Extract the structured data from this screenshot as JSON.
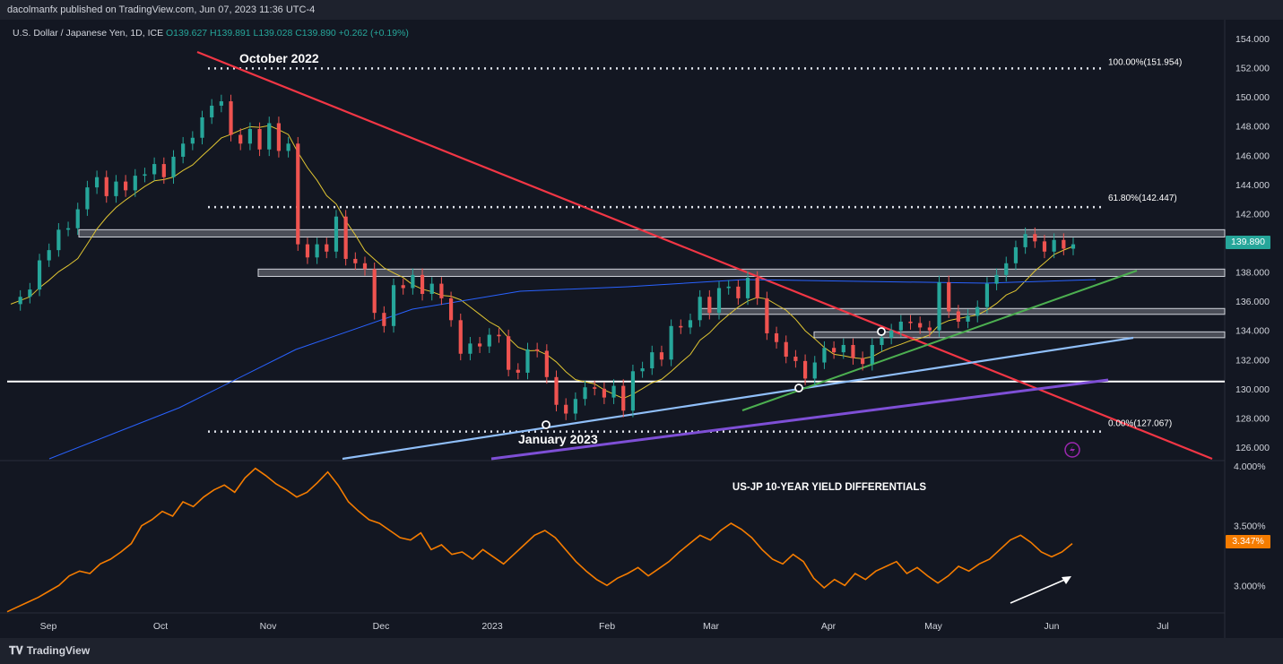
{
  "header": {
    "publisher": "dacolmanfx published on TradingView.com, Jun 07, 2023 11:36 UTC-4"
  },
  "legend": {
    "symbol": "U.S. Dollar / Japanese Yen, 1D, ICE",
    "ohlc": "O139.627 H139.891 L139.028 C139.890 +0.262 (+0.19%)"
  },
  "footer": {
    "brand": "TradingView"
  },
  "colors": {
    "background": "#131722",
    "up_candle": "#26a69a",
    "down_candle": "#ef5350",
    "sma_short": "#e0c532",
    "sma_long": "#2962ff",
    "downtrend": "#f23645",
    "uptrend_green": "#4caf50",
    "support_blue": "#90bff9",
    "support_purple": "#7e4fd6",
    "yield_line": "#f57c00"
  },
  "chart_data": [
    {
      "type": "candlestick",
      "title": "U.S. Dollar / Japanese Yen, 1D, ICE",
      "last_price": "139.890",
      "y_ticks": [
        "154.000",
        "152.000",
        "150.000",
        "148.000",
        "146.000",
        "144.000",
        "142.000",
        "140.000",
        "138.000",
        "136.000",
        "134.000",
        "132.000",
        "130.000",
        "128.000",
        "126.000"
      ],
      "ylim": [
        125.2,
        154.8
      ],
      "x_ticks": [
        "Sep",
        "Oct",
        "Nov",
        "Dec",
        "2023",
        "Feb",
        "Mar",
        "Apr",
        "May",
        "Jun",
        "Jul"
      ],
      "annotations": {
        "top_label": "October 2022",
        "bottom_label": "January 2023",
        "fib_100": "100.00%(151.954)",
        "fib_618": "61.80%(142.447)",
        "fib_0": "0.00%(127.067)"
      },
      "levels": {
        "fib_100": 151.954,
        "fib_618": 142.447,
        "fib_0": 127.067,
        "support_white": 130.5
      },
      "zones": [
        {
          "from": 140.4,
          "to": 140.9
        },
        {
          "from": 137.7,
          "to": 138.2
        },
        {
          "from": 135.1,
          "to": 135.5
        },
        {
          "from": 133.5,
          "to": 133.9
        }
      ],
      "series": [
        {
          "name": "USD/JPY",
          "points": [
            [
              0,
              135.8
            ],
            [
              0.02,
              136.3
            ],
            [
              0.04,
              136.8
            ],
            [
              0.06,
              138.8
            ],
            [
              0.08,
              139.5
            ],
            [
              0.1,
              140.9
            ],
            [
              0.12,
              141.0
            ],
            [
              0.14,
              142.3
            ],
            [
              0.16,
              143.8
            ],
            [
              0.18,
              144.5
            ],
            [
              0.2,
              143.2
            ],
            [
              0.22,
              144.2
            ],
            [
              0.24,
              143.6
            ],
            [
              0.26,
              144.6
            ],
            [
              0.28,
              144.7
            ],
            [
              0.3,
              145.4
            ],
            [
              0.32,
              144.5
            ],
            [
              0.34,
              145.9
            ],
            [
              0.36,
              146.8
            ],
            [
              0.38,
              147.2
            ],
            [
              0.4,
              148.6
            ],
            [
              0.42,
              149.4
            ],
            [
              0.44,
              149.7
            ],
            [
              0.46,
              147.4
            ],
            [
              0.48,
              146.8
            ],
            [
              0.5,
              147.8
            ],
            [
              0.52,
              146.4
            ],
            [
              0.54,
              148.2
            ],
            [
              0.56,
              146.3
            ],
            [
              0.58,
              146.8
            ],
            [
              0.6,
              139.9
            ],
            [
              0.62,
              139.0
            ],
            [
              0.64,
              139.9
            ],
            [
              0.66,
              139.4
            ],
            [
              0.68,
              141.8
            ],
            [
              0.7,
              138.9
            ],
            [
              0.72,
              138.6
            ],
            [
              0.74,
              138.2
            ],
            [
              0.76,
              135.2
            ],
            [
              0.78,
              134.3
            ],
            [
              0.8,
              137.1
            ],
            [
              0.82,
              136.9
            ],
            [
              0.84,
              137.8
            ],
            [
              0.86,
              136.5
            ],
            [
              0.88,
              137.2
            ],
            [
              0.9,
              136.2
            ],
            [
              0.92,
              134.7
            ],
            [
              0.94,
              132.4
            ],
            [
              0.96,
              133.1
            ],
            [
              0.98,
              132.9
            ],
            [
              1.0,
              133.7
            ],
            [
              1.02,
              133.6
            ],
            [
              1.04,
              131.3
            ],
            [
              1.06,
              131.1
            ],
            [
              1.08,
              132.7
            ],
            [
              1.1,
              132.6
            ],
            [
              1.12,
              130.8
            ],
            [
              1.14,
              128.9
            ],
            [
              1.16,
              128.3
            ],
            [
              1.18,
              129.3
            ],
            [
              1.2,
              130.1
            ],
            [
              1.22,
              130.0
            ],
            [
              1.24,
              129.4
            ],
            [
              1.26,
              130.2
            ],
            [
              1.28,
              128.5
            ],
            [
              1.3,
              131.2
            ],
            [
              1.32,
              131.4
            ],
            [
              1.34,
              132.5
            ],
            [
              1.36,
              132.0
            ],
            [
              1.38,
              134.3
            ],
            [
              1.4,
              134.2
            ],
            [
              1.42,
              134.7
            ],
            [
              1.44,
              136.3
            ],
            [
              1.46,
              135.2
            ],
            [
              1.48,
              136.9
            ],
            [
              1.5,
              137.0
            ],
            [
              1.52,
              136.2
            ],
            [
              1.54,
              137.6
            ],
            [
              1.56,
              136.2
            ],
            [
              1.58,
              133.8
            ],
            [
              1.6,
              133.2
            ],
            [
              1.62,
              132.2
            ],
            [
              1.64,
              131.9
            ],
            [
              1.66,
              130.7
            ],
            [
              1.68,
              131.8
            ],
            [
              1.7,
              132.8
            ],
            [
              1.72,
              132.5
            ],
            [
              1.74,
              133.0
            ],
            [
              1.76,
              132.1
            ],
            [
              1.78,
              131.7
            ],
            [
              1.8,
              133.0
            ],
            [
              1.82,
              133.5
            ],
            [
              1.84,
              134.0
            ],
            [
              1.86,
              134.6
            ],
            [
              1.88,
              134.5
            ],
            [
              1.9,
              134.2
            ],
            [
              1.92,
              134.0
            ],
            [
              1.94,
              137.3
            ],
            [
              1.96,
              135.3
            ],
            [
              1.98,
              134.6
            ],
            [
              2.0,
              135.0
            ],
            [
              2.02,
              135.6
            ],
            [
              2.04,
              137.2
            ],
            [
              2.06,
              137.8
            ],
            [
              2.08,
              138.6
            ],
            [
              2.1,
              139.7
            ],
            [
              2.12,
              140.6
            ],
            [
              2.14,
              140.1
            ],
            [
              2.16,
              139.4
            ],
            [
              2.18,
              140.2
            ],
            [
              2.2,
              139.6
            ],
            [
              2.22,
              139.9
            ]
          ]
        }
      ]
    },
    {
      "type": "line",
      "title": "US-JP 10-YEAR YIELD DIFFERENTIALS",
      "last_value": "3.347%",
      "y_ticks": [
        "4.000%",
        "3.500%",
        "3.000%"
      ],
      "ylim": [
        2.8,
        4.0
      ],
      "series": [
        {
          "name": "US-JP 10-YEAR YIELD DIFFERENTIALS",
          "values": [
            2.78,
            2.82,
            2.86,
            2.9,
            2.95,
            3.0,
            3.08,
            3.12,
            3.1,
            3.18,
            3.22,
            3.28,
            3.35,
            3.5,
            3.55,
            3.62,
            3.58,
            3.7,
            3.66,
            3.74,
            3.8,
            3.84,
            3.78,
            3.9,
            3.98,
            3.92,
            3.85,
            3.8,
            3.74,
            3.78,
            3.86,
            3.95,
            3.84,
            3.7,
            3.62,
            3.55,
            3.52,
            3.46,
            3.4,
            3.38,
            3.44,
            3.3,
            3.34,
            3.26,
            3.28,
            3.22,
            3.3,
            3.24,
            3.18,
            3.26,
            3.34,
            3.42,
            3.46,
            3.4,
            3.3,
            3.2,
            3.12,
            3.05,
            3.0,
            3.06,
            3.1,
            3.15,
            3.08,
            3.14,
            3.2,
            3.28,
            3.35,
            3.42,
            3.38,
            3.46,
            3.52,
            3.47,
            3.4,
            3.3,
            3.22,
            3.18,
            3.26,
            3.2,
            3.06,
            2.98,
            3.05,
            3.0,
            3.1,
            3.05,
            3.12,
            3.16,
            3.2,
            3.1,
            3.15,
            3.08,
            3.02,
            3.08,
            3.16,
            3.12,
            3.18,
            3.22,
            3.3,
            3.38,
            3.42,
            3.36,
            3.28,
            3.24,
            3.28,
            3.35
          ]
        }
      ]
    }
  ]
}
